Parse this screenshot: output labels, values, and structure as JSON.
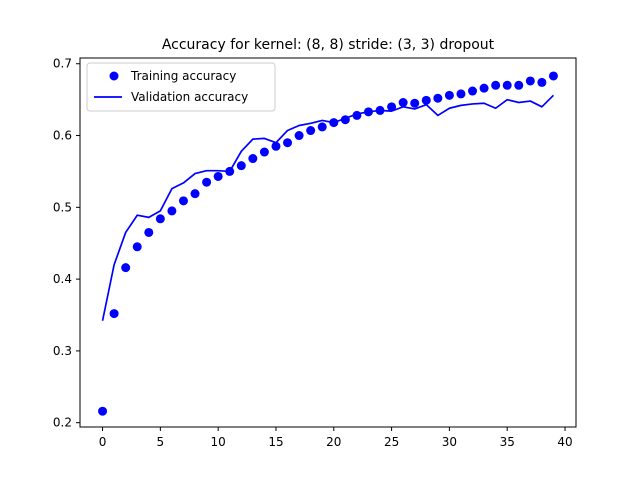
{
  "chart_data": {
    "type": "line",
    "title": "Accuracy for kernel: (8, 8) stride: (3, 3) dropout",
    "xlabel": "",
    "ylabel": "",
    "xlim": [
      -1.95,
      40.95
    ],
    "ylim": [
      0.194,
      0.708
    ],
    "xticks": [
      0,
      5,
      10,
      15,
      20,
      25,
      30,
      35,
      40
    ],
    "yticks": [
      0.2,
      0.3,
      0.4,
      0.5,
      0.6,
      0.7
    ],
    "xtick_labels": [
      "0",
      "5",
      "10",
      "15",
      "20",
      "25",
      "30",
      "35",
      "40"
    ],
    "ytick_labels": [
      "0.2",
      "0.3",
      "0.4",
      "0.5",
      "0.6",
      "0.7"
    ],
    "grid": false,
    "legend_position": "top-left",
    "x": [
      0,
      1,
      2,
      3,
      4,
      5,
      6,
      7,
      8,
      9,
      10,
      11,
      12,
      13,
      14,
      15,
      16,
      17,
      18,
      19,
      20,
      21,
      22,
      23,
      24,
      25,
      26,
      27,
      28,
      29,
      30,
      31,
      32,
      33,
      34,
      35,
      36,
      37,
      38,
      39
    ],
    "series": [
      {
        "name": "Training accuracy",
        "style": "markers",
        "color": "#0000ff",
        "values": [
          0.216,
          0.352,
          0.416,
          0.445,
          0.465,
          0.484,
          0.495,
          0.509,
          0.519,
          0.535,
          0.543,
          0.55,
          0.558,
          0.568,
          0.577,
          0.585,
          0.59,
          0.6,
          0.607,
          0.612,
          0.618,
          0.622,
          0.628,
          0.633,
          0.635,
          0.64,
          0.646,
          0.645,
          0.649,
          0.652,
          0.656,
          0.658,
          0.662,
          0.666,
          0.67,
          0.67,
          0.67,
          0.676,
          0.674,
          0.683
        ]
      },
      {
        "name": "Validation accuracy",
        "style": "line",
        "color": "#0000ff",
        "values": [
          0.342,
          0.42,
          0.465,
          0.489,
          0.486,
          0.495,
          0.526,
          0.534,
          0.547,
          0.551,
          0.551,
          0.55,
          0.578,
          0.595,
          0.596,
          0.59,
          0.607,
          0.614,
          0.617,
          0.621,
          0.618,
          0.624,
          0.63,
          0.633,
          0.635,
          0.634,
          0.64,
          0.637,
          0.643,
          0.628,
          0.638,
          0.642,
          0.644,
          0.645,
          0.638,
          0.65,
          0.646,
          0.648,
          0.64,
          0.656
        ]
      }
    ]
  }
}
